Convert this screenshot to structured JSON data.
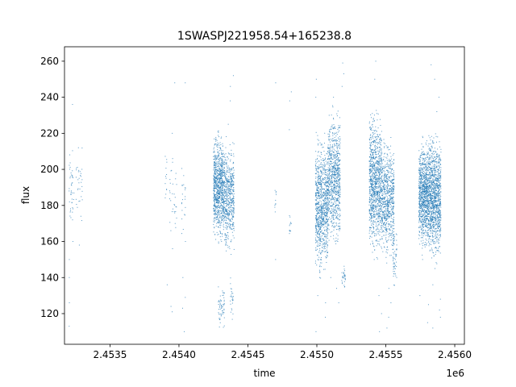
{
  "chart_data": {
    "type": "scatter",
    "title": "1SWASPJ221958.54+165238.8",
    "xlabel": "time",
    "ylabel": "flux",
    "offset_text": "1e6",
    "xlim": [
      2453170,
      2456070
    ],
    "ylim": [
      103,
      268
    ],
    "x_ticks": [
      2453500,
      2454000,
      2454500,
      2455000,
      2455500,
      2456000
    ],
    "x_tick_labels": [
      "2.4535",
      "2.4540",
      "2.4545",
      "2.4550",
      "2.4555",
      "2.4560"
    ],
    "y_ticks": [
      120,
      140,
      160,
      180,
      200,
      220,
      240,
      260
    ],
    "y_tick_labels": [
      "120",
      "140",
      "160",
      "180",
      "200",
      "220",
      "240",
      "260"
    ],
    "grid": false,
    "legend": "none",
    "marker_color": "#1f77b4",
    "clusters": [
      {
        "x": [
          2453200,
          2453240
        ],
        "center": 188,
        "spread": 10,
        "points": 40,
        "outliers": [
          113,
          126,
          140,
          150,
          160,
          172,
          236
        ]
      },
      {
        "x": [
          2453250,
          2453300
        ],
        "center": 192,
        "spread": 10,
        "points": 30,
        "outliers": [
          158,
          174,
          212
        ]
      },
      {
        "x": [
          2453900,
          2453915
        ],
        "center": 192,
        "spread": 7,
        "points": 12,
        "outliers": [
          136
        ]
      },
      {
        "x": [
          2453930,
          2453985
        ],
        "center": 188,
        "spread": 10,
        "points": 30,
        "outliers": [
          121,
          124,
          156,
          166,
          220,
          248
        ]
      },
      {
        "x": [
          2454020,
          2454050
        ],
        "center": 182,
        "spread": 12,
        "points": 20,
        "outliers": [
          110,
          123,
          129,
          140,
          160,
          175,
          248
        ]
      },
      {
        "x": [
          2454250,
          2454320
        ],
        "center": 190,
        "spread": 12,
        "points": 800,
        "outliers": [
          160,
          165,
          170
        ]
      },
      {
        "x": [
          2454320,
          2454400
        ],
        "center": 185,
        "spread": 12,
        "points": 600,
        "outliers": [
          162,
          168,
          225,
          238,
          246,
          252
        ]
      },
      {
        "x": [
          2454285,
          2454330
        ],
        "center": 124,
        "spread": 5,
        "points": 60,
        "outliers": []
      },
      {
        "x": [
          2454370,
          2454395
        ],
        "center": 128,
        "spread": 5,
        "points": 25,
        "outliers": []
      },
      {
        "x": [
          2454695,
          2454705
        ],
        "center": 185,
        "spread": 5,
        "points": 10,
        "outliers": [
          150,
          248
        ]
      },
      {
        "x": [
          2454800,
          2454815
        ],
        "center": 172,
        "spread": 4,
        "points": 12,
        "outliers": [
          222,
          238,
          243
        ]
      },
      {
        "x": [
          2454990,
          2455080
        ],
        "center": 180,
        "spread": 15,
        "points": 900,
        "outliers": [
          110,
          118,
          126,
          130,
          140,
          148,
          240,
          250
        ]
      },
      {
        "x": [
          2455080,
          2455170
        ],
        "center": 195,
        "spread": 15,
        "points": 800,
        "outliers": [
          126,
          134,
          140,
          230,
          240
        ]
      },
      {
        "x": [
          2455180,
          2455210
        ],
        "center": 140,
        "spread": 3,
        "points": 30,
        "outliers": [
          246,
          253,
          259
        ]
      },
      {
        "x": [
          2455380,
          2455470
        ],
        "center": 193,
        "spread": 16,
        "points": 1000,
        "outliers": [
          110,
          120,
          130,
          150,
          250,
          260
        ]
      },
      {
        "x": [
          2455470,
          2455560
        ],
        "center": 183,
        "spread": 13,
        "points": 700,
        "outliers": [
          112,
          118,
          126,
          134
        ]
      },
      {
        "x": [
          2455550,
          2455580
        ],
        "center": 155,
        "spread": 10,
        "points": 60,
        "outliers": []
      },
      {
        "x": [
          2455740,
          2455810
        ],
        "center": 186,
        "spread": 12,
        "points": 900,
        "outliers": [
          115,
          125,
          130,
          150
        ]
      },
      {
        "x": [
          2455810,
          2455900
        ],
        "center": 185,
        "spread": 14,
        "points": 1100,
        "outliers": [
          112,
          118,
          122,
          128,
          136,
          145,
          232,
          240,
          250,
          258
        ]
      }
    ]
  }
}
